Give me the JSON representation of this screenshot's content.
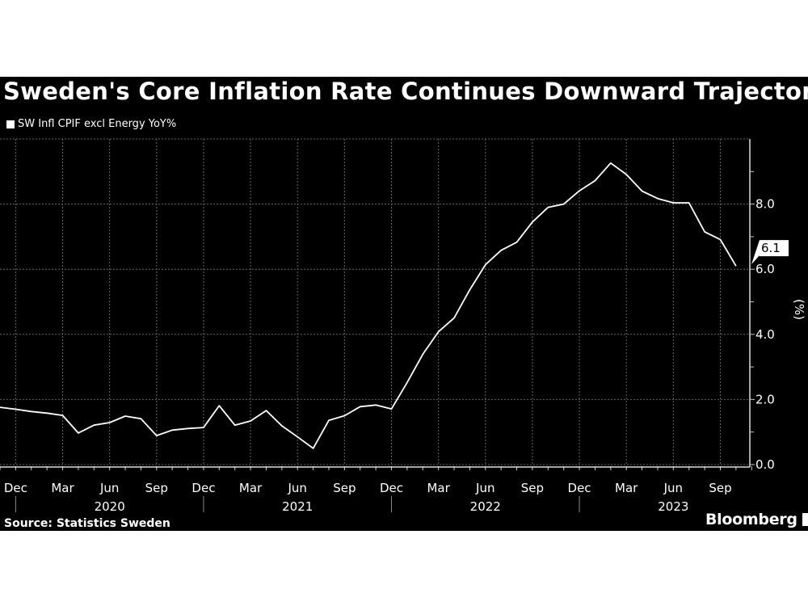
{
  "chart_data": {
    "type": "line",
    "title": "Sweden's Core Inflation Rate Continues Downward Trajectory",
    "source": "Source: Statistics Sweden",
    "brand": "Bloomberg",
    "ylabel": "(%)",
    "ylim": [
      0,
      10
    ],
    "yticks": [
      "0.0",
      "2.0",
      "4.0",
      "6.0",
      "8.0"
    ],
    "ytick_values": [
      0,
      2,
      4,
      6,
      8
    ],
    "grid": true,
    "y_axis_side": "right",
    "legend_placement": "top-left",
    "x_month_labels": [
      "Dec",
      "Mar",
      "Jun",
      "Sep",
      "Dec",
      "Mar",
      "Jun",
      "Sep",
      "Dec",
      "Mar",
      "Jun",
      "Sep",
      "Dec",
      "Mar",
      "Jun",
      "Sep"
    ],
    "x_year_labels": [
      "2020",
      "2021",
      "2022",
      "2023"
    ],
    "last_value_label": "6.1",
    "line_color": "#ffffff",
    "series": [
      {
        "name": "SW Infl CPIF excl Energy YoY%",
        "x": [
          "2019-11",
          "2019-12",
          "2020-01",
          "2020-02",
          "2020-03",
          "2020-04",
          "2020-05",
          "2020-06",
          "2020-07",
          "2020-08",
          "2020-09",
          "2020-10",
          "2020-11",
          "2020-12",
          "2021-01",
          "2021-02",
          "2021-03",
          "2021-04",
          "2021-05",
          "2021-06",
          "2021-07",
          "2021-08",
          "2021-09",
          "2021-10",
          "2021-11",
          "2021-12",
          "2022-01",
          "2022-02",
          "2022-03",
          "2022-04",
          "2022-05",
          "2022-06",
          "2022-07",
          "2022-08",
          "2022-09",
          "2022-10",
          "2022-11",
          "2022-12",
          "2023-01",
          "2023-02",
          "2023-03",
          "2023-04",
          "2023-05",
          "2023-06",
          "2023-07",
          "2023-08",
          "2023-09",
          "2023-10"
        ],
        "values": [
          1.76,
          1.7,
          1.63,
          1.58,
          1.51,
          0.97,
          1.21,
          1.29,
          1.49,
          1.41,
          0.89,
          1.06,
          1.11,
          1.14,
          1.81,
          1.21,
          1.34,
          1.66,
          1.19,
          0.85,
          0.5,
          1.36,
          1.5,
          1.78,
          1.83,
          1.71,
          2.52,
          3.39,
          4.08,
          4.5,
          5.37,
          6.14,
          6.58,
          6.83,
          7.45,
          7.9,
          8.0,
          8.41,
          8.72,
          9.26,
          8.91,
          8.4,
          8.17,
          8.04,
          8.04,
          7.15,
          6.91,
          6.1
        ]
      }
    ]
  }
}
